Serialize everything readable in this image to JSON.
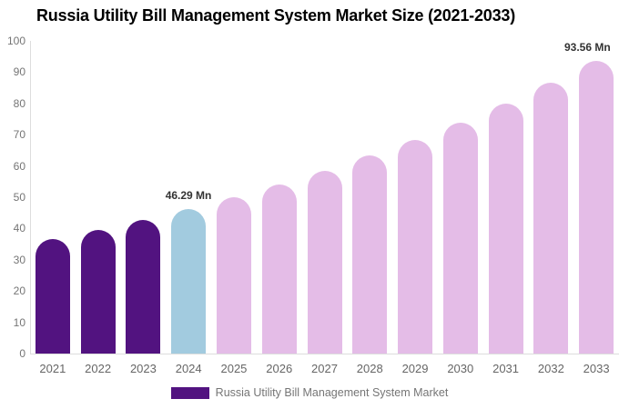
{
  "title": "Russia Utility Bill Management System Market Size (2021-2033)",
  "legend": {
    "label": "Russia Utility Bill Management System Market",
    "swatch_color": "#521380"
  },
  "colors": {
    "background": "#ffffff",
    "title_text": "#000000",
    "axis_line": "#dddddd",
    "y_tick_text": "#757575",
    "x_tick_text": "#666666",
    "annotation_text": "#333333",
    "historical_bar": "#521380",
    "base_year_bar": "#A2CBDF",
    "forecast_bar": "#E4BCE7"
  },
  "chart_data": {
    "type": "bar",
    "title": "Russia Utility Bill Management System Market Size (2021-2033)",
    "unit": "Mn",
    "categories": [
      "2021",
      "2022",
      "2023",
      "2024",
      "2025",
      "2026",
      "2027",
      "2028",
      "2029",
      "2030",
      "2031",
      "2032",
      "2033"
    ],
    "values": [
      36.65,
      39.63,
      42.85,
      46.29,
      50.05,
      54.12,
      58.52,
      63.28,
      68.42,
      73.98,
      79.99,
      86.49,
      93.56
    ],
    "color_by_index": [
      "#521380",
      "#521380",
      "#521380",
      "#A2CBDF",
      "#E4BCE7",
      "#E4BCE7",
      "#E4BCE7",
      "#E4BCE7",
      "#E4BCE7",
      "#E4BCE7",
      "#E4BCE7",
      "#E4BCE7",
      "#E4BCE7"
    ],
    "annotations": [
      {
        "index": 3,
        "category": "2024",
        "value": 46.29,
        "text": "46.29 Mn"
      },
      {
        "index": 12,
        "category": "2033",
        "value": 93.56,
        "text": "93.56 Mn"
      }
    ],
    "xlabel": "",
    "ylabel": "",
    "ylim": [
      0,
      100
    ],
    "yticks": [
      0,
      10,
      20,
      30,
      40,
      50,
      60,
      70,
      80,
      90,
      100
    ],
    "grid": false,
    "legend_position": "bottom",
    "legend_entries": [
      {
        "label": "Russia Utility Bill Management System Market",
        "color": "#521380"
      }
    ]
  }
}
